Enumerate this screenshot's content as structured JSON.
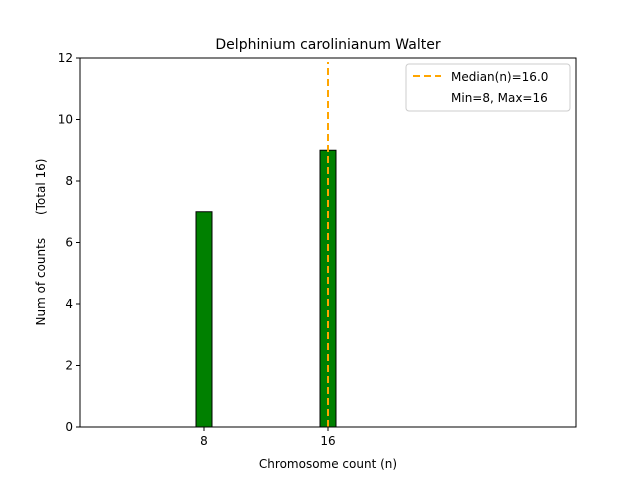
{
  "chart_data": {
    "type": "bar",
    "title": "Delphinium carolinianum Walter",
    "xlabel": "Chromosome count (n)",
    "ylabel": "Num of counts      (Total 16)",
    "xlim": [
      0,
      32
    ],
    "ylim": [
      0,
      12
    ],
    "x": [
      8,
      16
    ],
    "values": [
      7,
      9
    ],
    "xticks": [
      "8",
      "16"
    ],
    "yticks": [
      "0",
      "2",
      "4",
      "6",
      "8",
      "10",
      "12"
    ],
    "bar_color": "#008000",
    "bar_edge_color": "#000000",
    "median": 16.0,
    "median_color": "#ffa500",
    "legend_position": "top-right",
    "legend": [
      {
        "label": "Median(n)=16.0",
        "style": "dashed-line"
      },
      {
        "label": "Min=8, Max=16",
        "style": "none"
      }
    ]
  }
}
